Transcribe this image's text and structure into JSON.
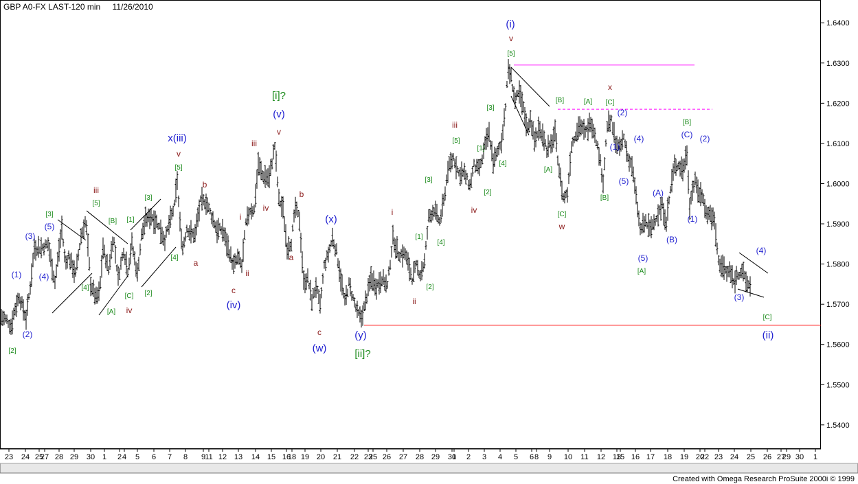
{
  "header": {
    "title": "GBP A0-FX LAST-120 min",
    "date": "11/26/2010"
  },
  "footer": {
    "credit": "Created with Omega Research ProSuite 2000i © 1999"
  },
  "colors": {
    "price": "#000000",
    "resistance": "#ff00ff",
    "support": "#ff0000",
    "wave_blue": "#1f1fd0",
    "wave_green": "#1a8a1a",
    "wave_red": "#8b1a1a"
  },
  "chart_data": {
    "type": "bar",
    "title": "GBP A0-FX LAST-120 min",
    "ylim": [
      1.534,
      1.6455
    ],
    "yticks": [
      1.54,
      1.55,
      1.56,
      1.57,
      1.58,
      1.59,
      1.6,
      1.61,
      1.62,
      1.63,
      1.64
    ],
    "ytick_labels": [
      "1.5400",
      "1.5500",
      "1.5600",
      "1.5700",
      "1.5800",
      "1.5900",
      "1.6000",
      "1.6100",
      "1.6200",
      "1.6300",
      "1.6400"
    ],
    "x_axis_labels": [
      "23",
      "24",
      "25",
      "27",
      "28",
      "29",
      "30",
      "1",
      "2",
      "4",
      "5",
      "6",
      "7",
      "8",
      "9",
      "11",
      "12",
      "13",
      "14",
      "15",
      "16",
      "18",
      "19",
      "20",
      "21",
      "22",
      "23",
      "25",
      "26",
      "27",
      "28",
      "29",
      "30",
      "1",
      "2",
      "3",
      "4",
      "5",
      "6",
      "8",
      "9",
      "10",
      "11",
      "12",
      "13",
      "15",
      "16",
      "17",
      "18",
      "19",
      "20",
      "22",
      "23",
      "24",
      "25",
      "26",
      "27",
      "29",
      "30",
      "1"
    ],
    "x_label_positions": [
      13,
      37,
      57,
      65,
      86,
      108,
      132,
      152,
      174,
      181,
      200,
      224,
      247,
      270,
      296,
      304,
      324,
      347,
      372,
      395,
      417,
      425,
      444,
      467,
      491,
      516,
      536,
      543,
      563,
      587,
      611,
      634,
      658,
      661,
      682,
      705,
      728,
      751,
      774,
      781,
      800,
      827,
      851,
      875,
      898,
      903,
      925,
      947,
      972,
      996,
      1019,
      1026,
      1046,
      1069,
      1093,
      1117,
      1137,
      1145,
      1164,
      1187
    ],
    "series": [
      {
        "anchors_x": [
          0,
          10,
          16,
          22,
          28,
          38,
          44,
          50,
          60,
          70,
          80,
          90,
          95,
          100,
          110,
          118,
          125,
          132,
          140,
          145,
          150,
          158,
          165,
          172,
          180,
          186,
          192,
          200,
          206,
          212,
          220,
          230,
          240,
          248,
          254,
          258,
          262,
          266,
          272,
          278,
          284,
          292,
          300,
          308,
          316,
          324,
          332,
          340,
          346,
          352,
          358,
          364,
          370,
          376,
          382,
          392,
          400,
          406,
          412,
          418,
          424,
          430,
          436,
          442,
          448,
          454,
          460,
          466,
          472,
          478,
          484,
          490,
          496,
          502,
          508,
          514,
          520,
          526,
          532,
          540,
          548,
          556,
          564,
          572,
          580,
          590,
          600,
          606,
          612,
          618,
          624,
          632,
          640,
          646,
          652,
          660,
          668,
          676,
          684,
          690,
          696,
          700,
          706,
          712,
          718,
          724,
          730,
          736,
          740,
          744,
          750,
          756,
          762,
          768,
          772,
          778,
          784,
          790,
          796,
          802,
          808,
          814,
          820,
          826,
          832,
          838,
          844,
          852,
          860,
          866,
          872,
          878,
          884,
          890,
          896,
          902,
          908,
          914,
          920,
          926,
          932,
          936,
          940,
          946,
          952,
          958,
          964,
          970,
          976,
          982,
          988,
          994,
          1000,
          1004,
          1008,
          1012,
          1018,
          1024,
          1028,
          1034,
          1040,
          1046,
          1052,
          1058,
          1062,
          1068,
          1074,
          1080,
          1086,
          1092,
          1098,
          1104,
          1110,
          1114,
          1120
        ],
        "anchors_y": [
          1.567,
          1.566,
          1.5645,
          1.569,
          1.572,
          1.5665,
          1.5745,
          1.584,
          1.584,
          1.585,
          1.5755,
          1.589,
          1.58,
          1.582,
          1.5775,
          1.587,
          1.591,
          1.575,
          1.5715,
          1.573,
          1.584,
          1.5785,
          1.587,
          1.5765,
          1.5835,
          1.5785,
          1.585,
          1.5775,
          1.587,
          1.591,
          1.592,
          1.59,
          1.586,
          1.591,
          1.5945,
          1.601,
          1.59,
          1.584,
          1.589,
          1.5875,
          1.5875,
          1.5955,
          1.5955,
          1.592,
          1.5885,
          1.5885,
          1.584,
          1.5795,
          1.5815,
          1.5795,
          1.59,
          1.5935,
          1.5935,
          1.605,
          1.602,
          1.6015,
          1.6095,
          1.596,
          1.5935,
          1.584,
          1.5855,
          1.594,
          1.591,
          1.5755,
          1.5765,
          1.571,
          1.5745,
          1.5695,
          1.5795,
          1.5825,
          1.5865,
          1.583,
          1.5765,
          1.5705,
          1.575,
          1.5715,
          1.568,
          1.5665,
          1.5705,
          1.5765,
          1.5745,
          1.5765,
          1.5745,
          1.5865,
          1.5825,
          1.5825,
          1.5765,
          1.5795,
          1.5775,
          1.5805,
          1.5915,
          1.5935,
          1.5905,
          1.5955,
          1.6035,
          1.6065,
          1.6025,
          1.6025,
          1.5995,
          1.6045,
          1.6035,
          1.6045,
          1.6095,
          1.6125,
          1.6055,
          1.6075,
          1.6105,
          1.6195,
          1.6285,
          1.6265,
          1.6205,
          1.6225,
          1.6185,
          1.6135,
          1.6165,
          1.6105,
          1.6135,
          1.6125,
          1.6085,
          1.6095,
          1.6125,
          1.6035,
          1.5965,
          1.5975,
          1.6095,
          1.6125,
          1.6145,
          1.6125,
          1.6155,
          1.6125,
          1.6075,
          1.6005,
          1.6145,
          1.6155,
          1.6105,
          1.6085,
          1.6115,
          1.6065,
          1.6045,
          1.5965,
          1.5885,
          1.5895,
          1.5905,
          1.5885,
          1.5905,
          1.5925,
          1.5945,
          1.5905,
          1.5985,
          1.6045,
          1.6045,
          1.6035,
          1.6075,
          1.5945,
          1.5985,
          1.6005,
          1.5975,
          1.5965,
          1.5925,
          1.5925,
          1.5905,
          1.5805,
          1.5795,
          1.5775,
          1.5785,
          1.5755,
          1.5775,
          1.5785,
          1.5755,
          1.5745
        ]
      }
    ],
    "lines": [
      {
        "name": "resistance",
        "y": 1.6295,
        "color": "#ff00ff"
      },
      {
        "name": "secondary-resistance",
        "y": 1.6185,
        "color": "#ff00ff"
      },
      {
        "name": "support",
        "y": 1.5648,
        "color": "#ff0000"
      }
    ],
    "annotations": [
      {
        "t": "[2]",
        "x": 18,
        "y": 514,
        "c": "g"
      },
      {
        "t": "(2)",
        "x": 40,
        "y": 491,
        "c": "b"
      },
      {
        "t": "(1)",
        "x": 24,
        "y": 404,
        "c": "b"
      },
      {
        "t": "(3)",
        "x": 44,
        "y": 348,
        "c": "b"
      },
      {
        "t": "(4)",
        "x": 64,
        "y": 407,
        "c": "b"
      },
      {
        "t": "(5)",
        "x": 72,
        "y": 334,
        "c": "b"
      },
      {
        "t": "[3]",
        "x": 72,
        "y": 315,
        "c": "g"
      },
      {
        "t": "[4]",
        "x": 124,
        "y": 422,
        "c": "g"
      },
      {
        "t": "[5]",
        "x": 140,
        "y": 299,
        "c": "g"
      },
      {
        "t": "iii",
        "x": 140,
        "y": 281,
        "c": "r"
      },
      {
        "t": "[B]",
        "x": 164,
        "y": 325,
        "c": "g"
      },
      {
        "t": "[A]",
        "x": 162,
        "y": 457,
        "c": "g"
      },
      {
        "t": "[C]",
        "x": 188,
        "y": 434,
        "c": "g"
      },
      {
        "t": "iv",
        "x": 188,
        "y": 456,
        "c": "r"
      },
      {
        "t": "[1]",
        "x": 190,
        "y": 323,
        "c": "g"
      },
      {
        "t": "[2]",
        "x": 216,
        "y": 430,
        "c": "g"
      },
      {
        "t": "[3]",
        "x": 216,
        "y": 291,
        "c": "g"
      },
      {
        "t": "[4]",
        "x": 254,
        "y": 378,
        "c": "g"
      },
      {
        "t": "[5]",
        "x": 260,
        "y": 247,
        "c": "g"
      },
      {
        "t": "v",
        "x": 260,
        "y": 228,
        "c": "r"
      },
      {
        "t": "x(iii)",
        "x": 258,
        "y": 206,
        "c": "b",
        "fs": 15
      },
      {
        "t": "b",
        "x": 298,
        "y": 273,
        "c": "r"
      },
      {
        "t": "a",
        "x": 285,
        "y": 387,
        "c": "r"
      },
      {
        "t": "i",
        "x": 350,
        "y": 320,
        "c": "r"
      },
      {
        "t": "ii",
        "x": 360,
        "y": 402,
        "c": "r"
      },
      {
        "t": "c",
        "x": 340,
        "y": 427,
        "c": "r"
      },
      {
        "t": "(iv)",
        "x": 340,
        "y": 449,
        "c": "b",
        "fs": 15
      },
      {
        "t": "iii",
        "x": 370,
        "y": 213,
        "c": "r"
      },
      {
        "t": "iv",
        "x": 387,
        "y": 307,
        "c": "r"
      },
      {
        "t": "v",
        "x": 406,
        "y": 196,
        "c": "r"
      },
      {
        "t": "(v)",
        "x": 406,
        "y": 171,
        "c": "b",
        "fs": 15
      },
      {
        "t": "[i]?",
        "x": 406,
        "y": 144,
        "c": "g",
        "fs": 15
      },
      {
        "t": "b",
        "x": 439,
        "y": 287,
        "c": "r"
      },
      {
        "t": "a",
        "x": 424,
        "y": 379,
        "c": "r"
      },
      {
        "t": "(x)",
        "x": 482,
        "y": 324,
        "c": "b",
        "fs": 15
      },
      {
        "t": "c",
        "x": 465,
        "y": 488,
        "c": "r"
      },
      {
        "t": "(w)",
        "x": 465,
        "y": 512,
        "c": "b",
        "fs": 15
      },
      {
        "t": "(y)",
        "x": 525,
        "y": 493,
        "c": "b",
        "fs": 15
      },
      {
        "t": "[ii]?",
        "x": 528,
        "y": 520,
        "c": "g",
        "fs": 15
      },
      {
        "t": "i",
        "x": 571,
        "y": 313,
        "c": "r"
      },
      {
        "t": "ii",
        "x": 603,
        "y": 443,
        "c": "r"
      },
      {
        "t": "[1]",
        "x": 610,
        "y": 348,
        "c": "g"
      },
      {
        "t": "[2]",
        "x": 626,
        "y": 421,
        "c": "g"
      },
      {
        "t": "[3]",
        "x": 624,
        "y": 265,
        "c": "g"
      },
      {
        "t": "[4]",
        "x": 642,
        "y": 356,
        "c": "g"
      },
      {
        "t": "[5]",
        "x": 664,
        "y": 208,
        "c": "g"
      },
      {
        "t": "iii",
        "x": 662,
        "y": 186,
        "c": "r"
      },
      {
        "t": "iv",
        "x": 690,
        "y": 310,
        "c": "r"
      },
      {
        "t": "[2]",
        "x": 710,
        "y": 283,
        "c": "g"
      },
      {
        "t": "[1]",
        "x": 700,
        "y": 219,
        "c": "g"
      },
      {
        "t": "[3]",
        "x": 714,
        "y": 160,
        "c": "g"
      },
      {
        "t": "[4]",
        "x": 732,
        "y": 241,
        "c": "g"
      },
      {
        "t": "[5]",
        "x": 744,
        "y": 81,
        "c": "g"
      },
      {
        "t": "v",
        "x": 744,
        "y": 60,
        "c": "r"
      },
      {
        "t": "(i)",
        "x": 743,
        "y": 40,
        "c": "b",
        "fs": 15
      },
      {
        "t": "[B]",
        "x": 815,
        "y": 149,
        "c": "g"
      },
      {
        "t": "[A]",
        "x": 798,
        "y": 250,
        "c": "g"
      },
      {
        "t": "[C]",
        "x": 818,
        "y": 315,
        "c": "g"
      },
      {
        "t": "w",
        "x": 818,
        "y": 334,
        "c": "r"
      },
      {
        "t": "[A]",
        "x": 856,
        "y": 151,
        "c": "g"
      },
      {
        "t": "[C]",
        "x": 888,
        "y": 152,
        "c": "g"
      },
      {
        "t": "x",
        "x": 888,
        "y": 131,
        "c": "r"
      },
      {
        "t": "(2)",
        "x": 906,
        "y": 168,
        "c": "b"
      },
      {
        "t": "(1)",
        "x": 895,
        "y": 218,
        "c": "b"
      },
      {
        "t": "[B]",
        "x": 880,
        "y": 291,
        "c": "g"
      },
      {
        "t": "(4)",
        "x": 930,
        "y": 206,
        "c": "b"
      },
      {
        "t": "(5)",
        "x": 908,
        "y": 268,
        "c": "b"
      },
      {
        "t": "(5)",
        "x": 936,
        "y": 380,
        "c": "b"
      },
      {
        "t": "[A]",
        "x": 934,
        "y": 398,
        "c": "g"
      },
      {
        "t": "(A)",
        "x": 958,
        "y": 285,
        "c": "b"
      },
      {
        "t": "(B)",
        "x": 978,
        "y": 353,
        "c": "b"
      },
      {
        "t": "[B]",
        "x": 1000,
        "y": 181,
        "c": "g"
      },
      {
        "t": "(C)",
        "x": 1000,
        "y": 200,
        "c": "b"
      },
      {
        "t": "(2)",
        "x": 1026,
        "y": 206,
        "c": "b"
      },
      {
        "t": "(1)",
        "x": 1008,
        "y": 323,
        "c": "b"
      },
      {
        "t": "(4)",
        "x": 1108,
        "y": 369,
        "c": "b"
      },
      {
        "t": "(3)",
        "x": 1076,
        "y": 437,
        "c": "b"
      },
      {
        "t": "[C]",
        "x": 1117,
        "y": 465,
        "c": "g"
      },
      {
        "t": "(ii)",
        "x": 1118,
        "y": 493,
        "c": "b",
        "fs": 15
      }
    ]
  }
}
